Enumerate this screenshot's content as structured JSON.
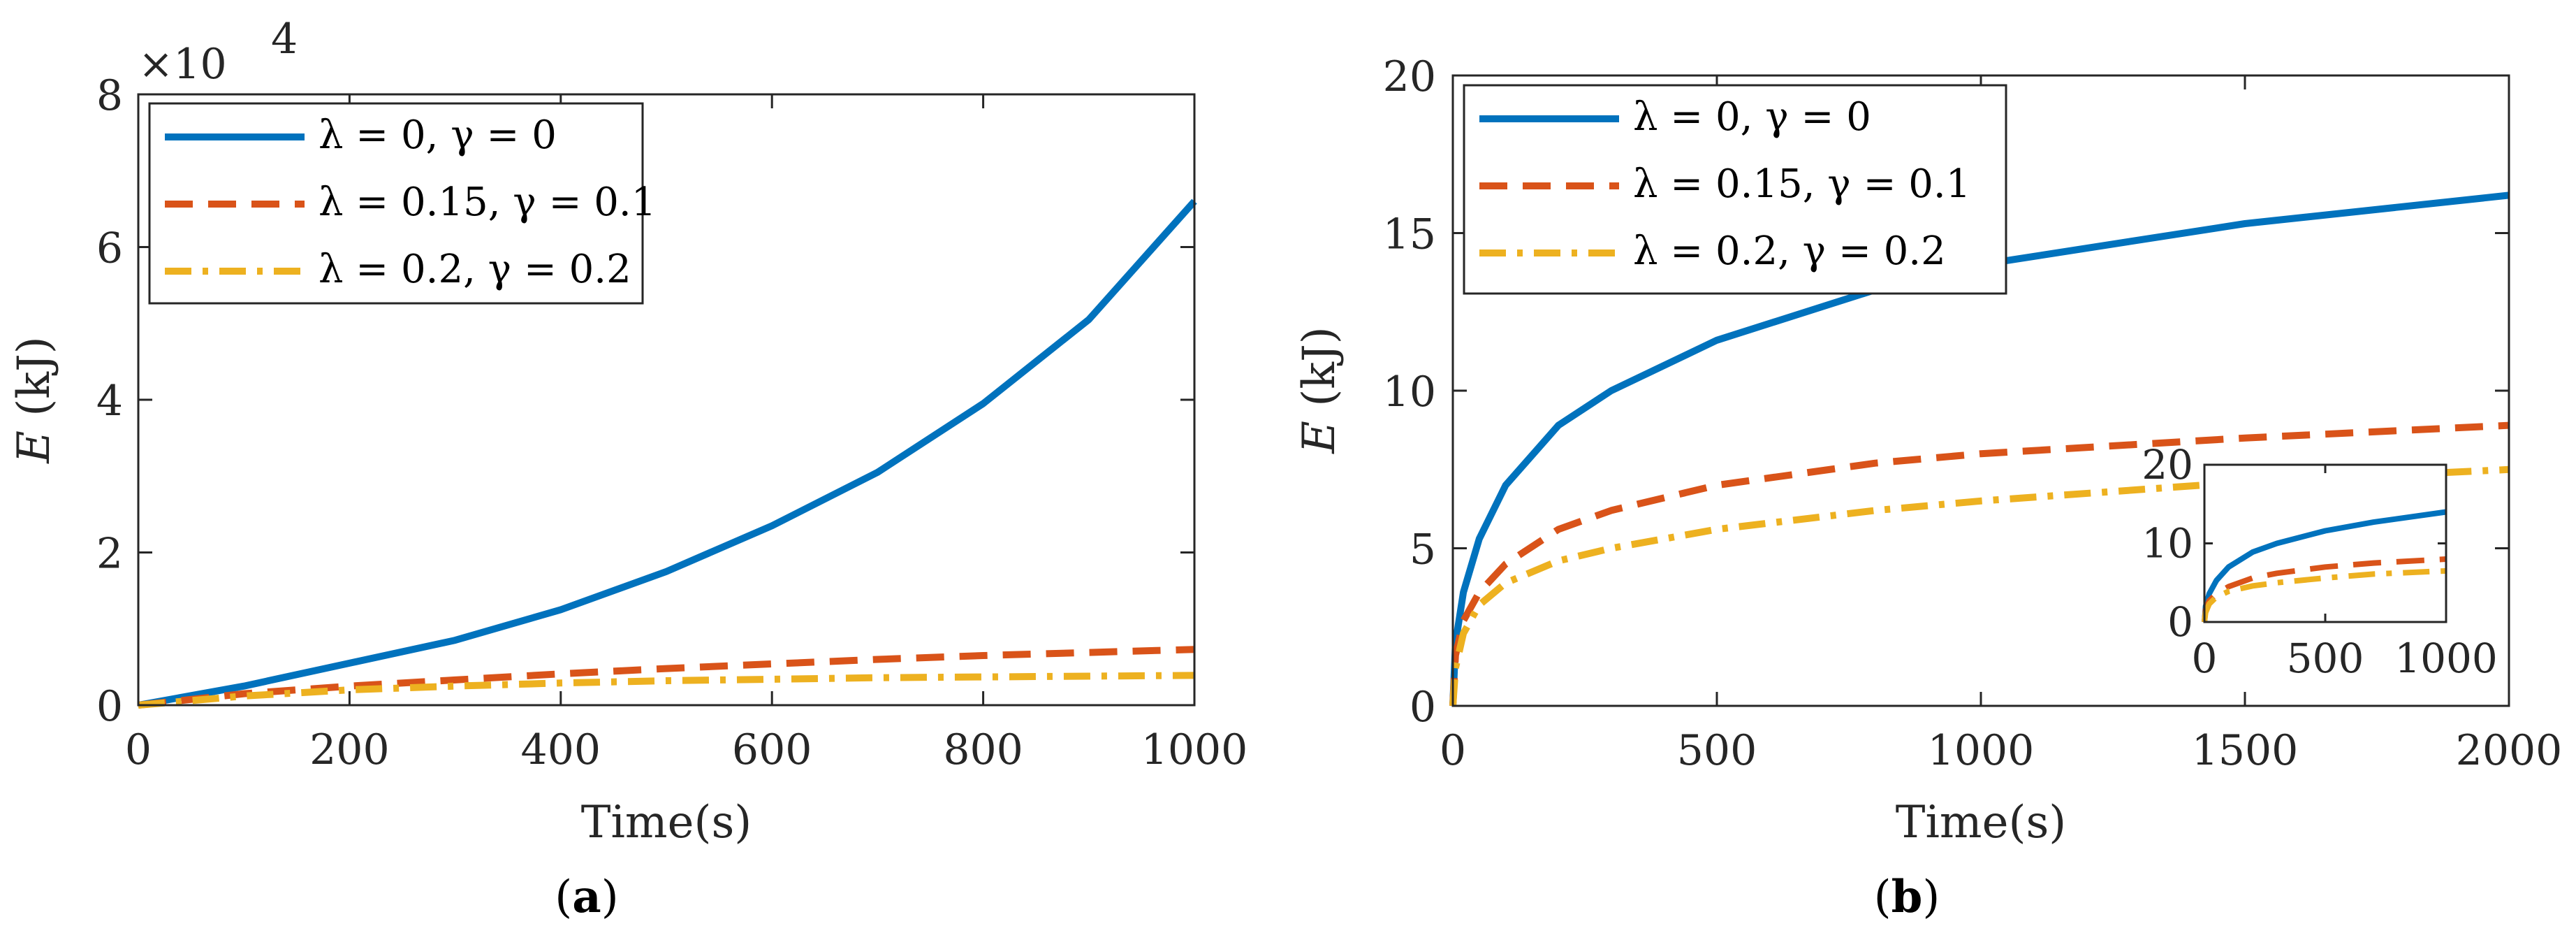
{
  "chart_data": [
    {
      "type": "line",
      "caption": "(a)",
      "caption_letter": "a",
      "xlabel": "Time(s)",
      "ylabel_var": "E",
      "ylabel_unit": " (kJ)",
      "y_multiplier": "×10",
      "y_multiplier_exp": "4",
      "xlim": [
        0,
        1000
      ],
      "ylim": [
        0,
        8
      ],
      "xticks": [
        0,
        200,
        400,
        600,
        800,
        1000
      ],
      "yticks": [
        0,
        2,
        4,
        6,
        8
      ],
      "grid": false,
      "legend_position": "top-left",
      "series": [
        {
          "name": "λ = 0, γ = 0",
          "style": "solid",
          "color": "#0072BD",
          "x": [
            0,
            100,
            200,
            300,
            400,
            500,
            600,
            700,
            800,
            900,
            1000
          ],
          "y": [
            0,
            0.25,
            0.55,
            0.85,
            1.25,
            1.75,
            2.35,
            3.05,
            3.95,
            5.05,
            6.6
          ]
        },
        {
          "name": "λ = 0.15, γ = 0.1",
          "style": "dashed",
          "color": "#D95319",
          "x": [
            0,
            100,
            200,
            300,
            400,
            500,
            600,
            700,
            800,
            900,
            1000
          ],
          "y": [
            0,
            0.15,
            0.25,
            0.33,
            0.41,
            0.48,
            0.54,
            0.6,
            0.65,
            0.69,
            0.73
          ]
        },
        {
          "name": "λ = 0.2, γ = 0.2",
          "style": "dashdot",
          "color": "#EDB120",
          "x": [
            0,
            100,
            200,
            300,
            400,
            500,
            600,
            700,
            800,
            900,
            1000
          ],
          "y": [
            0,
            0.12,
            0.2,
            0.25,
            0.29,
            0.32,
            0.34,
            0.36,
            0.37,
            0.38,
            0.39
          ]
        }
      ]
    },
    {
      "type": "line",
      "caption": "(b)",
      "caption_letter": "b",
      "xlabel": "Time(s)",
      "ylabel_var": "E",
      "ylabel_unit": " (kJ)",
      "xlim": [
        0,
        2000
      ],
      "ylim": [
        0,
        20
      ],
      "xticks": [
        0,
        500,
        1000,
        1500,
        2000
      ],
      "yticks": [
        0,
        5,
        10,
        15,
        20
      ],
      "grid": false,
      "legend_position": "top-left",
      "series": [
        {
          "name": "λ = 0, γ = 0",
          "style": "solid",
          "color": "#0072BD",
          "x": [
            0,
            5,
            20,
            50,
            100,
            200,
            300,
            500,
            800,
            1000,
            1500,
            2000
          ],
          "y": [
            0,
            2.0,
            3.6,
            5.3,
            7.0,
            8.9,
            10.0,
            11.6,
            13.2,
            14.0,
            15.3,
            16.2
          ]
        },
        {
          "name": "λ = 0.15, γ = 0.1",
          "style": "dashed",
          "color": "#D95319",
          "x": [
            0,
            5,
            20,
            50,
            100,
            200,
            300,
            500,
            800,
            1000,
            1500,
            2000
          ],
          "y": [
            0,
            1.6,
            2.7,
            3.6,
            4.5,
            5.6,
            6.2,
            7.0,
            7.7,
            8.0,
            8.5,
            8.9
          ]
        },
        {
          "name": "λ = 0.2, γ = 0.2",
          "style": "dashdot",
          "color": "#EDB120",
          "x": [
            0,
            5,
            20,
            50,
            100,
            200,
            300,
            500,
            800,
            1000,
            1500,
            2000
          ],
          "y": [
            0,
            1.2,
            2.3,
            3.2,
            3.9,
            4.6,
            5.0,
            5.6,
            6.2,
            6.5,
            7.1,
            7.5
          ]
        }
      ],
      "inset": {
        "xlim": [
          0,
          1000
        ],
        "ylim": [
          0,
          20
        ],
        "xticks": [
          0,
          500,
          1000
        ],
        "yticks": [
          0,
          10,
          20
        ],
        "series": [
          {
            "name": "λ = 0, γ = 0",
            "style": "solid",
            "color": "#0072BD",
            "x": [
              0,
              5,
              20,
              50,
              100,
              200,
              300,
              500,
              700,
              1000
            ],
            "y": [
              0,
              2.0,
              3.6,
              5.3,
              7.0,
              8.9,
              10.0,
              11.6,
              12.7,
              14.0
            ]
          },
          {
            "name": "λ = 0.15, γ = 0.1",
            "style": "dashed",
            "color": "#D95319",
            "x": [
              0,
              5,
              20,
              50,
              100,
              200,
              300,
              500,
              700,
              1000
            ],
            "y": [
              0,
              1.6,
              2.7,
              3.6,
              4.5,
              5.6,
              6.2,
              7.0,
              7.5,
              8.0
            ]
          },
          {
            "name": "λ = 0.2, γ = 0.2",
            "style": "dashdot",
            "color": "#EDB120",
            "x": [
              0,
              5,
              20,
              50,
              100,
              200,
              300,
              500,
              700,
              1000
            ],
            "y": [
              0,
              1.2,
              2.3,
              3.2,
              3.9,
              4.6,
              5.0,
              5.6,
              6.1,
              6.5
            ]
          }
        ]
      }
    }
  ]
}
